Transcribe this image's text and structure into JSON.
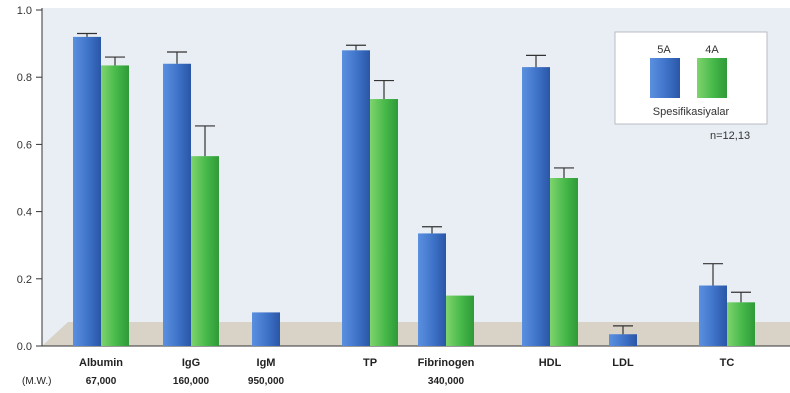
{
  "chart_data": {
    "type": "bar",
    "categories": [
      "Albumin",
      "IgG",
      "IgM",
      "TP",
      "Fibrinogen",
      "HDL",
      "LDL",
      "TC"
    ],
    "molecular_weight_label": "(M.W.)",
    "molecular_weights": [
      "67,000",
      "160,000",
      "950,000",
      "",
      "340,000",
      "",
      "",
      ""
    ],
    "series": [
      {
        "name": "5A",
        "values": [
          0.92,
          0.84,
          0.1,
          0.88,
          0.335,
          0.83,
          0.035,
          0.18
        ],
        "errors": [
          0.01,
          0.035,
          null,
          0.015,
          0.02,
          0.035,
          0.025,
          0.065
        ]
      },
      {
        "name": "4A",
        "values": [
          0.835,
          0.565,
          null,
          0.735,
          0.15,
          0.5,
          null,
          0.13
        ],
        "errors": [
          0.025,
          0.09,
          null,
          0.055,
          null,
          0.03,
          null,
          0.03
        ]
      }
    ],
    "yticks": [
      "0.0",
      "0.2",
      "0.4",
      "0.6",
      "0.8",
      "1.0"
    ],
    "ylim": [
      0,
      1.0
    ],
    "legend_title": "Spesifikasiyalar",
    "legend_position": "top-right",
    "annotation": "n=12,13",
    "colors": {
      "series_5A": "#3e72c8",
      "series_4A": "#46b84a",
      "background": "#e8eef4",
      "floor": "#d9d2c7",
      "error_bar": "#333333"
    }
  }
}
